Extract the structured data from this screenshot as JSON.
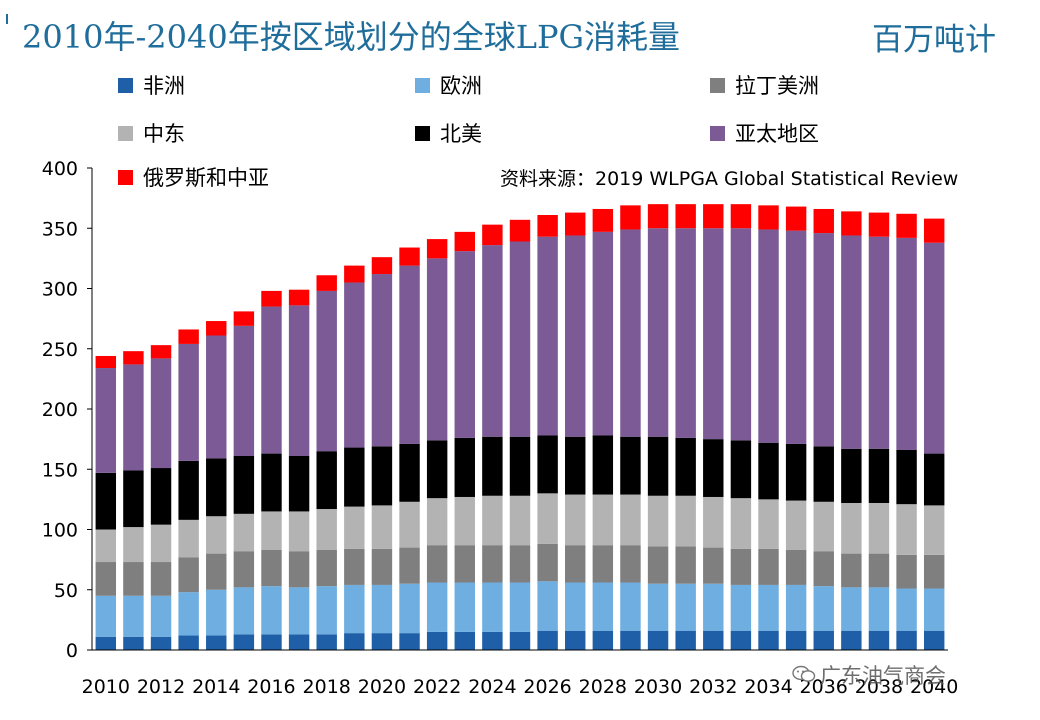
{
  "title": "2010年-2040年按区域划分的全球LPG消耗量",
  "unit": "百万吨计",
  "source": "资料来源：2019 WLPGA Global Statistical Review",
  "watermark": "广东油气商会",
  "watermark_icon": "wechat-icon",
  "chart_data": {
    "type": "stacked-bar",
    "title": "2010年-2040年按区域划分的全球LPG消耗量",
    "ylabel": "百万吨计",
    "ylim": [
      0,
      400
    ],
    "yticks": [
      0,
      50,
      100,
      150,
      200,
      250,
      300,
      350,
      400
    ],
    "x": [
      2010,
      2011,
      2012,
      2013,
      2014,
      2015,
      2016,
      2017,
      2018,
      2019,
      2020,
      2021,
      2022,
      2023,
      2024,
      2025,
      2026,
      2027,
      2028,
      2029,
      2030,
      2031,
      2032,
      2033,
      2034,
      2035,
      2036,
      2037,
      2038,
      2039,
      2040
    ],
    "xtick_labels": [
      "2010",
      "2012",
      "2014",
      "2016",
      "2018",
      "2020",
      "2022",
      "2024",
      "2026",
      "2028",
      "2030",
      "2032",
      "2034",
      "2036",
      "2038",
      "2040"
    ],
    "series": [
      {
        "name": "非洲",
        "color": "#1f5fa8",
        "values": [
          11,
          11,
          11,
          12,
          12,
          13,
          13,
          13,
          13,
          14,
          14,
          14,
          15,
          15,
          15,
          15,
          16,
          16,
          16,
          16,
          16,
          16,
          16,
          16,
          16,
          16,
          16,
          16,
          16,
          16,
          16
        ]
      },
      {
        "name": "欧洲",
        "color": "#6eaee0",
        "values": [
          34,
          34,
          34,
          36,
          38,
          39,
          40,
          39,
          40,
          40,
          40,
          41,
          41,
          41,
          41,
          41,
          41,
          40,
          40,
          40,
          39,
          39,
          39,
          38,
          38,
          38,
          37,
          36,
          36,
          35,
          35
        ]
      },
      {
        "name": "拉丁美洲",
        "color": "#7f7f7f",
        "values": [
          28,
          28,
          28,
          29,
          30,
          30,
          30,
          30,
          30,
          30,
          30,
          30,
          31,
          31,
          31,
          31,
          31,
          31,
          31,
          31,
          31,
          31,
          30,
          30,
          30,
          29,
          29,
          28,
          28,
          28,
          28
        ]
      },
      {
        "name": "中东",
        "color": "#b3b3b3",
        "values": [
          27,
          29,
          31,
          31,
          31,
          31,
          32,
          33,
          34,
          35,
          36,
          38,
          39,
          40,
          41,
          41,
          42,
          42,
          42,
          42,
          42,
          42,
          42,
          42,
          41,
          41,
          41,
          42,
          42,
          42,
          41
        ]
      },
      {
        "name": "北美",
        "color": "#000000",
        "values": [
          47,
          47,
          47,
          49,
          48,
          48,
          48,
          46,
          48,
          49,
          49,
          48,
          48,
          49,
          49,
          49,
          48,
          48,
          49,
          48,
          49,
          48,
          48,
          48,
          47,
          47,
          46,
          45,
          45,
          45,
          43
        ]
      },
      {
        "name": "亚太地区",
        "color": "#7b5a95",
        "values": [
          87,
          88,
          91,
          97,
          102,
          108,
          122,
          125,
          133,
          137,
          143,
          148,
          151,
          155,
          159,
          162,
          165,
          167,
          169,
          172,
          173,
          174,
          175,
          176,
          177,
          177,
          177,
          177,
          176,
          176,
          175
        ]
      },
      {
        "name": "俄罗斯和中亚",
        "color": "#ff0000",
        "values": [
          10,
          11,
          11,
          12,
          12,
          12,
          13,
          13,
          13,
          14,
          14,
          15,
          16,
          16,
          17,
          18,
          18,
          19,
          19,
          20,
          20,
          20,
          20,
          20,
          20,
          20,
          20,
          20,
          20,
          20,
          20
        ]
      }
    ],
    "legend": [
      "非洲",
      "欧洲",
      "拉丁美洲",
      "中东",
      "北美",
      "亚太地区",
      "俄罗斯和中亚"
    ],
    "legend_position": "top",
    "grid": false
  }
}
